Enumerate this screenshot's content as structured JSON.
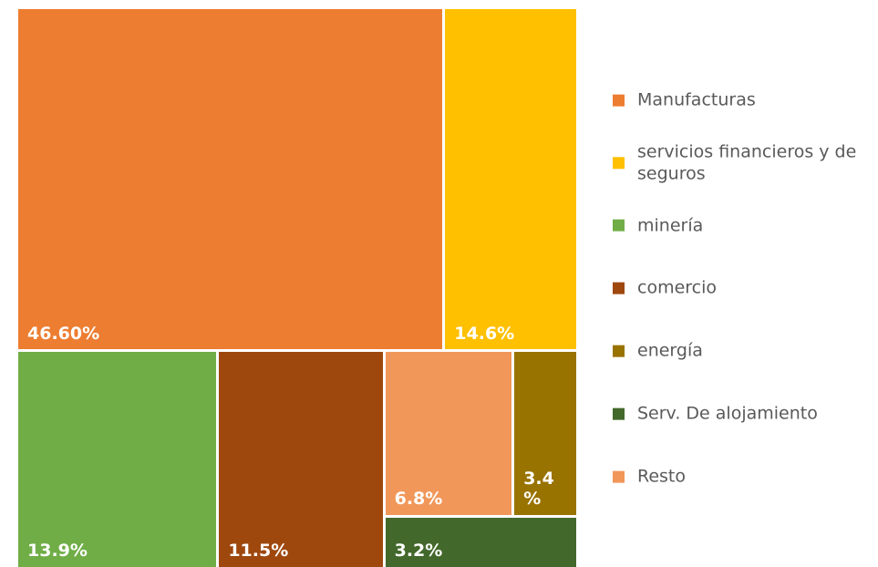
{
  "chart_data": {
    "type": "treemap",
    "categories": [
      "Manufacturas",
      "servicios financieros y de seguros",
      "minería",
      "comercio",
      "energía",
      "Serv. De alojamiento",
      "Resto"
    ],
    "values": [
      46.6,
      14.6,
      13.9,
      11.5,
      3.4,
      3.2,
      6.8
    ],
    "value_labels": [
      "46.60%",
      "14.6%",
      "13.9%",
      "11.5%",
      "3.4 %",
      "3.2%",
      "6.8%"
    ],
    "colors": [
      "#ED7D31",
      "#FFC000",
      "#70AD47",
      "#9E480E",
      "#997300",
      "#43682B",
      "#F1975A"
    ]
  }
}
